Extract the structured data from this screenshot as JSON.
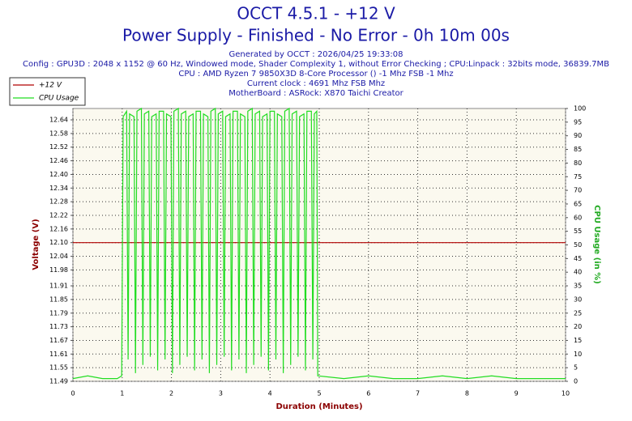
{
  "chart_data": {
    "type": "line",
    "title": "OCCT 4.5.1 - +12 V",
    "subtitle": "Power Supply - Finished - No Error - 0h 10m 00s",
    "info_lines": [
      "Generated by OCCT : 2026/04/25 19:33:08",
      "Config : GPU3D : 2048 x 1152 @ 60 Hz, Windowed mode, Shader Complexity 1, without Error Checking ; CPU:Linpack : 32bits mode, 36839.7MB",
      "CPU : AMD Ryzen 7 9850X3D 8-Core Processor () -1 Mhz FSB -1 Mhz",
      "Current clock : 4691 Mhz FSB  Mhz",
      "MotherBoard : ASRock: X870 Taichi Creator"
    ],
    "xlabel": "Duration (Minutes)",
    "ylabel": "Voltage (V)",
    "y2label": "CPU Usage (in %)",
    "xlim": [
      0,
      10
    ],
    "xticks": [
      0,
      1,
      2,
      3,
      4,
      5,
      6,
      7,
      8,
      9,
      10
    ],
    "ylim": [
      11.49,
      12.69
    ],
    "yticks": [
      11.49,
      11.55,
      11.61,
      11.67,
      11.73,
      11.79,
      11.85,
      11.91,
      11.98,
      12.04,
      {
        "value": 12.1,
        "label": "12.10"
      },
      12.16,
      12.22,
      12.28,
      12.34,
      {
        "value": 12.4,
        "label": "12.40"
      },
      12.46,
      12.52,
      12.58,
      12.64
    ],
    "y2lim": [
      0,
      100
    ],
    "y2ticks": [
      0,
      5,
      10,
      15,
      20,
      25,
      30,
      35,
      40,
      45,
      50,
      55,
      60,
      65,
      70,
      75,
      80,
      85,
      90,
      95,
      100
    ],
    "grid": true,
    "legend": "top-left",
    "series": [
      {
        "name": "+12 V",
        "color": "#b00000",
        "x": [
          0,
          10
        ],
        "values": [
          12.1,
          12.1
        ]
      },
      {
        "name": "CPU Usage",
        "color": "#22dd22",
        "axis": "y2",
        "x": [
          0,
          0.3,
          0.6,
          0.9,
          0.99,
          1.02,
          1.09,
          1.12,
          1.15,
          1.24,
          1.27,
          1.3,
          1.39,
          1.42,
          1.45,
          1.54,
          1.57,
          1.6,
          1.69,
          1.72,
          1.75,
          1.84,
          1.87,
          1.9,
          1.99,
          2.02,
          2.05,
          2.14,
          2.17,
          2.2,
          2.29,
          2.32,
          2.35,
          2.44,
          2.47,
          2.5,
          2.59,
          2.62,
          2.65,
          2.74,
          2.77,
          2.8,
          2.89,
          2.92,
          2.95,
          3.04,
          3.07,
          3.1,
          3.19,
          3.22,
          3.25,
          3.34,
          3.37,
          3.4,
          3.49,
          3.52,
          3.55,
          3.64,
          3.67,
          3.7,
          3.79,
          3.82,
          3.85,
          3.94,
          3.97,
          4,
          4.09,
          4.12,
          4.15,
          4.24,
          4.27,
          4.3,
          4.39,
          4.42,
          4.45,
          4.54,
          4.57,
          4.6,
          4.69,
          4.72,
          4.75,
          4.84,
          4.87,
          4.9,
          4.95,
          4.97,
          5.5,
          6,
          6.5,
          7,
          7.5,
          8,
          8.5,
          9,
          9.5,
          10
        ],
        "values": [
          1,
          2,
          1,
          1,
          2,
          97,
          99,
          8,
          98,
          97,
          3,
          99,
          100,
          6,
          98,
          99,
          9,
          97,
          98,
          4,
          99,
          99,
          8,
          98,
          97,
          3,
          99,
          100,
          6,
          98,
          99,
          9,
          97,
          98,
          4,
          99,
          99,
          8,
          98,
          97,
          3,
          99,
          100,
          6,
          98,
          99,
          9,
          97,
          98,
          4,
          99,
          99,
          8,
          98,
          97,
          3,
          99,
          100,
          6,
          98,
          99,
          9,
          97,
          98,
          4,
          99,
          99,
          8,
          98,
          97,
          3,
          99,
          100,
          6,
          98,
          99,
          9,
          97,
          98,
          4,
          99,
          99,
          8,
          98,
          99,
          2,
          1,
          2,
          1,
          1,
          2,
          1,
          2,
          1,
          1,
          1
        ]
      }
    ]
  }
}
